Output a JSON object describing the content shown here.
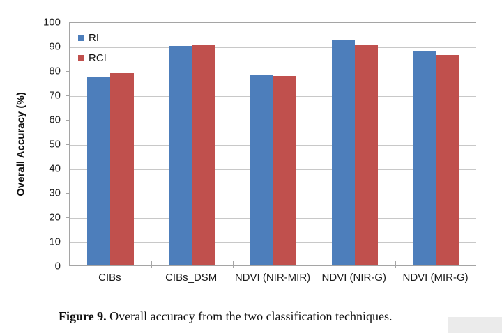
{
  "figure": {
    "caption": {
      "label": "Figure 9.",
      "text": "Overall accuracy from the two classification techniques."
    }
  },
  "chart_data": {
    "type": "bar",
    "title": "",
    "xlabel": "",
    "ylabel": "Overall Accuracy (%)",
    "ylim": [
      0,
      100
    ],
    "yticks": [
      0,
      10,
      20,
      30,
      40,
      50,
      60,
      70,
      80,
      90,
      100
    ],
    "grid": true,
    "legend_position": "inside-top-left",
    "categories": [
      "CIBs",
      "CIBs_DSM",
      "NDVI (NIR-MIR)",
      "NDVI (NIR-G)",
      "NDVI (MIR-G)"
    ],
    "series": [
      {
        "name": "RI",
        "color": "#4d7ebb",
        "values": [
          77.2,
          90.0,
          78.0,
          92.7,
          88.0
        ]
      },
      {
        "name": "RCI",
        "color": "#c0504d",
        "values": [
          79.0,
          90.7,
          77.7,
          90.6,
          86.3
        ]
      }
    ]
  },
  "colors": {
    "background": "#ffffff",
    "plot_border": "#a5a5a5",
    "gridline": "#c8c8c8",
    "axis_text": "#1b1b1b",
    "scan_artifact": "#ebebeb"
  }
}
